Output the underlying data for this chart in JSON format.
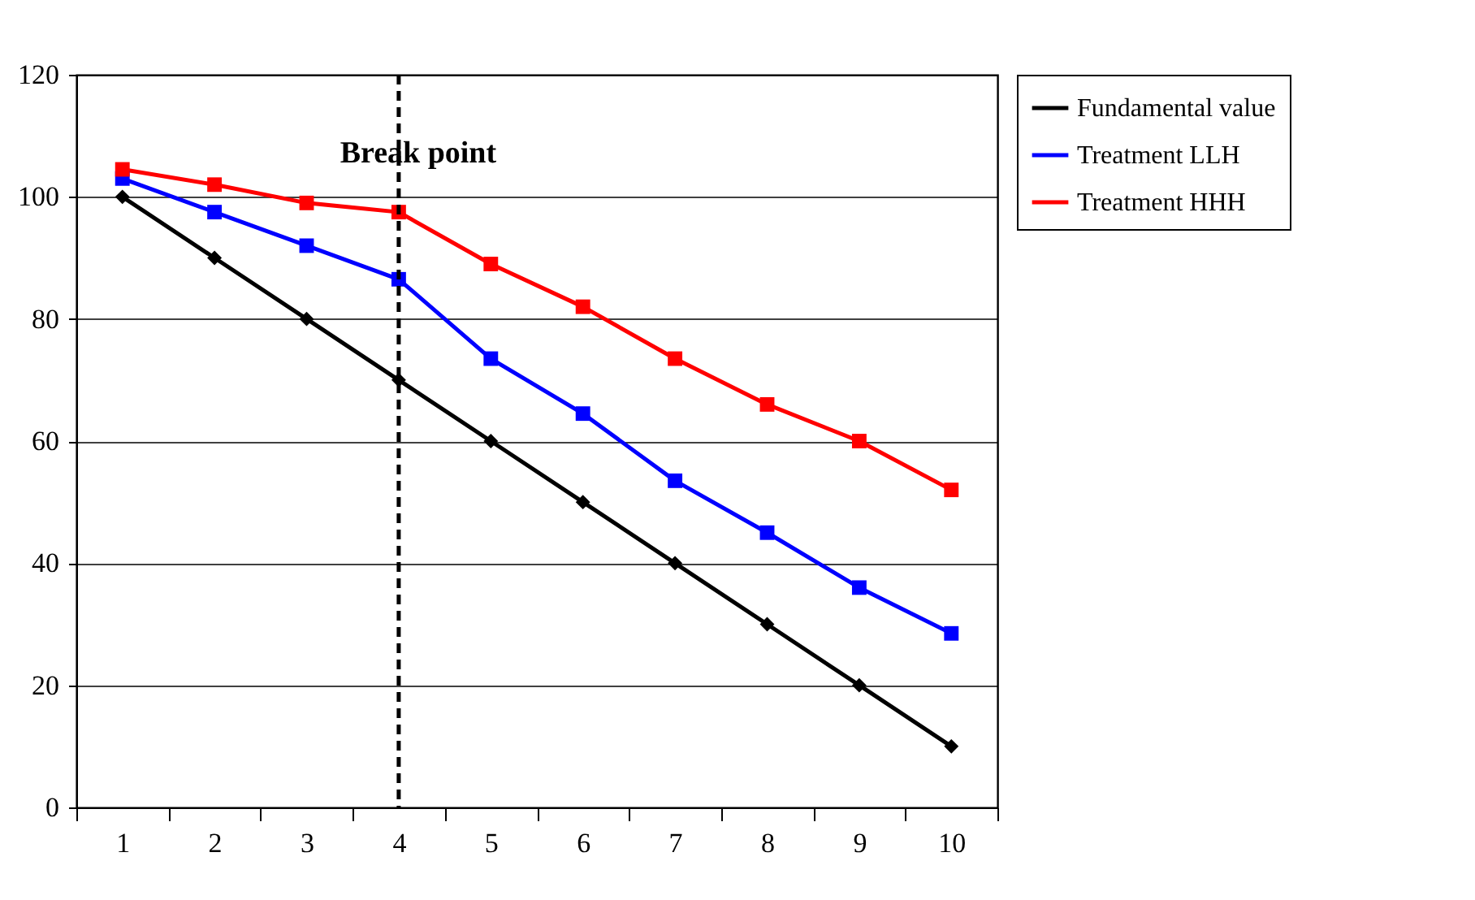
{
  "chart_data": {
    "type": "line",
    "categories": [
      "1",
      "2",
      "3",
      "4",
      "5",
      "6",
      "7",
      "8",
      "9",
      "10"
    ],
    "series": [
      {
        "name": "Fundamental value",
        "color": "#000000",
        "marker": "diamond",
        "values": [
          100,
          90,
          80,
          70,
          60,
          50,
          40,
          30,
          20,
          10
        ]
      },
      {
        "name": "Treatment LLH",
        "color": "#0000ff",
        "marker": "square",
        "values": [
          103,
          97.5,
          92,
          86.5,
          73.5,
          64.5,
          53.5,
          45,
          36,
          28.5
        ]
      },
      {
        "name": "Treatment HHH",
        "color": "#ff0000",
        "marker": "square",
        "values": [
          104.5,
          102,
          99,
          97.5,
          89,
          82,
          73.5,
          66,
          60,
          52
        ]
      }
    ],
    "ylim": [
      0,
      120
    ],
    "yticks": [
      0,
      20,
      40,
      60,
      80,
      100,
      120
    ],
    "grid": "y",
    "legend": "right",
    "line_style": "solid",
    "ref_lines": [
      {
        "axis": "x",
        "value": "4",
        "label": "Break point",
        "line_style": "dashed",
        "color": "#000000"
      }
    ]
  }
}
